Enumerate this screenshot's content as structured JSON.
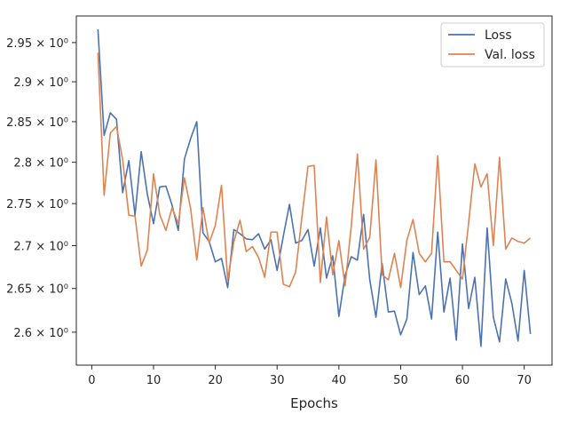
{
  "chart_data": {
    "type": "line",
    "xlabel": "Epochs",
    "ylabel": "",
    "title": "",
    "xlim": [
      -2.5,
      74.5
    ],
    "ylim": [
      2.5629,
      2.9844
    ],
    "yscale": "log",
    "grid": false,
    "legend_position": "top-right",
    "x_ticks": [
      {
        "value": 0,
        "label": "0"
      },
      {
        "value": 10,
        "label": "10"
      },
      {
        "value": 20,
        "label": "20"
      },
      {
        "value": 30,
        "label": "30"
      },
      {
        "value": 40,
        "label": "40"
      },
      {
        "value": 50,
        "label": "50"
      },
      {
        "value": 60,
        "label": "60"
      },
      {
        "value": 70,
        "label": "70"
      }
    ],
    "y_ticks": [
      {
        "value": 2.6,
        "label": "2.6 × 10⁰"
      },
      {
        "value": 2.65,
        "label": "2.65 × 10⁰"
      },
      {
        "value": 2.7,
        "label": "2.7 × 10⁰"
      },
      {
        "value": 2.75,
        "label": "2.75 × 10⁰"
      },
      {
        "value": 2.8,
        "label": "2.8 × 10⁰"
      },
      {
        "value": 2.85,
        "label": "2.85 × 10⁰"
      },
      {
        "value": 2.9,
        "label": "2.9 × 10⁰"
      },
      {
        "value": 2.95,
        "label": "2.95 × 10⁰"
      }
    ],
    "x": [
      1,
      2,
      3,
      4,
      5,
      6,
      7,
      8,
      9,
      10,
      11,
      12,
      13,
      14,
      15,
      16,
      17,
      18,
      19,
      20,
      21,
      22,
      23,
      24,
      25,
      26,
      27,
      28,
      29,
      30,
      31,
      32,
      33,
      34,
      35,
      36,
      37,
      38,
      39,
      40,
      41,
      42,
      43,
      44,
      45,
      46,
      47,
      48,
      49,
      50,
      51,
      52,
      53,
      54,
      55,
      56,
      57,
      58,
      59,
      60,
      61,
      62,
      63,
      64,
      65,
      66,
      67,
      68,
      69,
      70,
      71
    ],
    "series": [
      {
        "name": "Loss",
        "color": "#4c72b0",
        "values": [
          2.967,
          2.833,
          2.861,
          2.853,
          2.763,
          2.802,
          2.736,
          2.813,
          2.761,
          2.726,
          2.77,
          2.771,
          2.748,
          2.718,
          2.804,
          2.829,
          2.85,
          2.715,
          2.705,
          2.681,
          2.685,
          2.651,
          2.719,
          2.714,
          2.708,
          2.707,
          2.714,
          2.696,
          2.707,
          2.671,
          2.711,
          2.749,
          2.703,
          2.706,
          2.719,
          2.676,
          2.721,
          2.662,
          2.688,
          2.618,
          2.665,
          2.687,
          2.683,
          2.737,
          2.66,
          2.617,
          2.679,
          2.623,
          2.624,
          2.597,
          2.615,
          2.692,
          2.643,
          2.653,
          2.615,
          2.716,
          2.623,
          2.662,
          2.591,
          2.702,
          2.627,
          2.663,
          2.584,
          2.721,
          2.617,
          2.589,
          2.661,
          2.633,
          2.59,
          2.671,
          2.598
        ]
      },
      {
        "name": "Val. loss",
        "color": "#dd8452",
        "values": [
          2.937,
          2.76,
          2.836,
          2.844,
          2.803,
          2.736,
          2.735,
          2.676,
          2.695,
          2.786,
          2.737,
          2.718,
          2.745,
          2.726,
          2.781,
          2.744,
          2.683,
          2.745,
          2.703,
          2.724,
          2.772,
          2.66,
          2.705,
          2.73,
          2.693,
          2.699,
          2.686,
          2.663,
          2.716,
          2.716,
          2.655,
          2.652,
          2.669,
          2.733,
          2.795,
          2.796,
          2.657,
          2.734,
          2.666,
          2.706,
          2.653,
          2.723,
          2.81,
          2.696,
          2.71,
          2.803,
          2.666,
          2.66,
          2.691,
          2.651,
          2.706,
          2.731,
          2.691,
          2.681,
          2.691,
          2.808,
          2.681,
          2.681,
          2.671,
          2.661,
          2.727,
          2.798,
          2.77,
          2.786,
          2.7,
          2.806,
          2.696,
          2.709,
          2.705,
          2.703,
          2.709
        ]
      }
    ]
  }
}
